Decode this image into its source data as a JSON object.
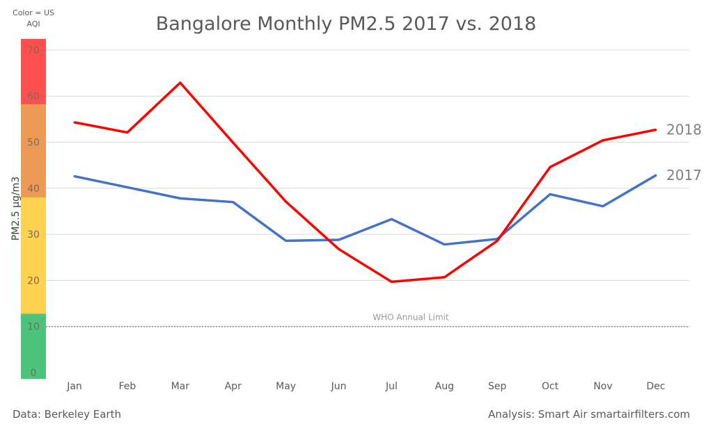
{
  "chart_data": {
    "type": "line",
    "title": "Bangalore Monthly PM2.5 2017 vs. 2018",
    "xlabel": "",
    "ylabel": "PM2.5  μg/m3",
    "categories": [
      "Jan",
      "Feb",
      "Mar",
      "Apr",
      "May",
      "Jun",
      "Jul",
      "Aug",
      "Sep",
      "Oct",
      "Nov",
      "Dec"
    ],
    "ylim": [
      0,
      70
    ],
    "yticks": [
      0,
      10,
      20,
      30,
      40,
      50,
      60,
      70
    ],
    "grid": true,
    "series": [
      {
        "name": "2017",
        "color": "#4472C4",
        "values": [
          42.6,
          40.2,
          37.8,
          37.0,
          28.6,
          28.8,
          33.3,
          27.8,
          29.0,
          38.7,
          36.1,
          42.8
        ]
      },
      {
        "name": "2018",
        "color": "#FF0000",
        "values": [
          54.3,
          52.1,
          62.9,
          49.9,
          37.1,
          26.8,
          19.7,
          20.7,
          28.6,
          44.6,
          50.4,
          52.7
        ]
      }
    ],
    "reference_line": {
      "value": 10,
      "label": "WHO Annual Limit"
    },
    "aqi_legend": {
      "caption": [
        "Color = US",
        "AQI"
      ],
      "bands": [
        {
          "from": 0,
          "to": 12.8,
          "color": "#4CC47C"
        },
        {
          "from": 12.8,
          "to": 38,
          "color": "#FFD34F"
        },
        {
          "from": 38,
          "to": 58.2,
          "color": "#EE9A57"
        },
        {
          "from": 58.2,
          "to": 72.4,
          "color": "#FF4F4F"
        }
      ]
    }
  },
  "footer": {
    "source": "Data: Berkeley Earth",
    "analysis": "Analysis: Smart Air smartairfilters.com"
  }
}
